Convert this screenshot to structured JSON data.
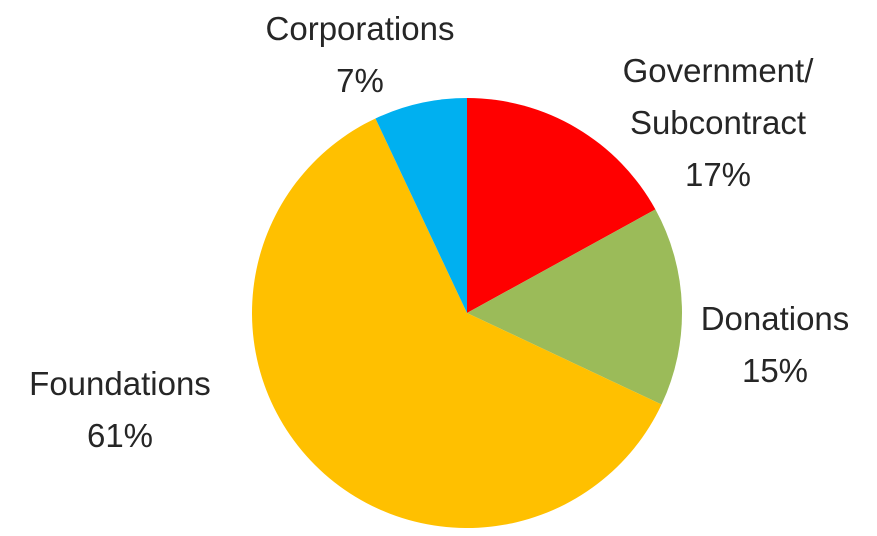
{
  "chart_data": {
    "type": "pie",
    "start_angle_deg": 0,
    "direction": "clockwise",
    "slices": [
      {
        "label_lines": [
          "Government/",
          "Subcontract"
        ],
        "label": "Government/ Subcontract",
        "value": 17,
        "value_label": "17%",
        "color": "#ff0000"
      },
      {
        "label_lines": [
          "Donations"
        ],
        "label": "Donations",
        "value": 15,
        "value_label": "15%",
        "color": "#9bbb59"
      },
      {
        "label_lines": [
          "Foundations"
        ],
        "label": "Foundations",
        "value": 61,
        "value_label": "61%",
        "color": "#ffc000"
      },
      {
        "label_lines": [
          "Corporations"
        ],
        "label": "Corporations",
        "value": 7,
        "value_label": "7%",
        "color": "#00b0f0"
      }
    ],
    "title": "",
    "legend": "none"
  }
}
